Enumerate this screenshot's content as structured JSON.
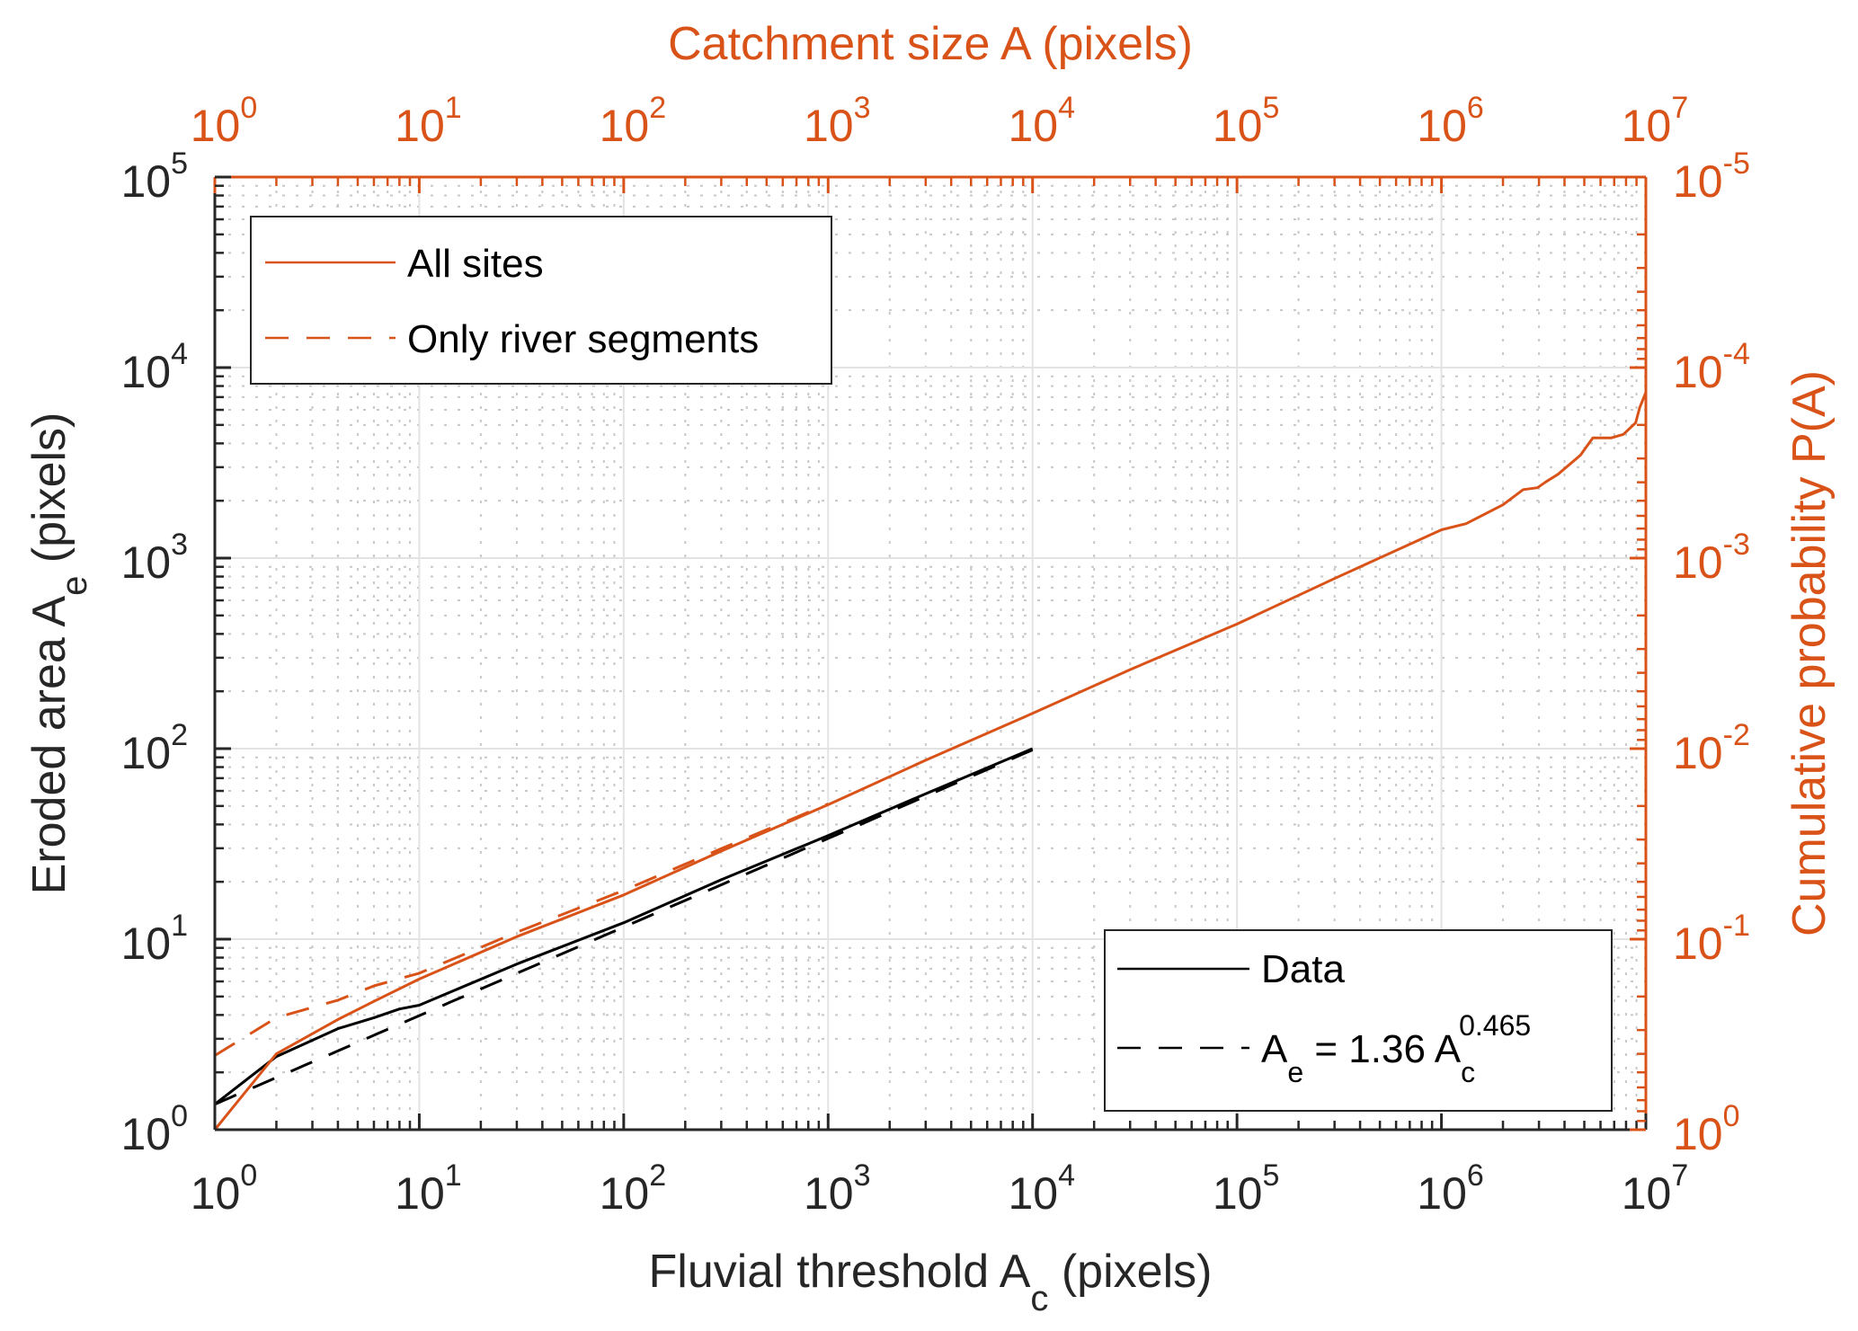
{
  "chart_data": {
    "type": "line",
    "title": "",
    "colors": {
      "primary_axis": "#262626",
      "secondary_axis": "#D95319",
      "grid": "#e3e3e3",
      "minor_grid": "#c8c8c8"
    },
    "x_axis_bottom": {
      "label": "Fluvial threshold A",
      "label_sub": "c",
      "label_suffix": " (pixels)",
      "scale": "log",
      "range": [
        1,
        10000000
      ],
      "ticks": [
        {
          "base": "10",
          "exp": "0"
        },
        {
          "base": "10",
          "exp": "1"
        },
        {
          "base": "10",
          "exp": "2"
        },
        {
          "base": "10",
          "exp": "3"
        },
        {
          "base": "10",
          "exp": "4"
        },
        {
          "base": "10",
          "exp": "5"
        },
        {
          "base": "10",
          "exp": "6"
        },
        {
          "base": "10",
          "exp": "7"
        }
      ]
    },
    "x_axis_top": {
      "label": "Catchment size A (pixels)",
      "scale": "log",
      "range": [
        1,
        10000000
      ],
      "ticks": [
        {
          "base": "10",
          "exp": "0"
        },
        {
          "base": "10",
          "exp": "1"
        },
        {
          "base": "10",
          "exp": "2"
        },
        {
          "base": "10",
          "exp": "3"
        },
        {
          "base": "10",
          "exp": "4"
        },
        {
          "base": "10",
          "exp": "5"
        },
        {
          "base": "10",
          "exp": "6"
        },
        {
          "base": "10",
          "exp": "7"
        }
      ]
    },
    "y_axis_left": {
      "label": "Eroded area A",
      "label_sub": "e",
      "label_suffix": " (pixels)",
      "scale": "log",
      "range": [
        1,
        100000
      ],
      "ticks": [
        {
          "base": "10",
          "exp": "0"
        },
        {
          "base": "10",
          "exp": "1"
        },
        {
          "base": "10",
          "exp": "2"
        },
        {
          "base": "10",
          "exp": "3"
        },
        {
          "base": "10",
          "exp": "4"
        },
        {
          "base": "10",
          "exp": "5"
        }
      ]
    },
    "y_axis_right": {
      "label": "Cumulative probability P(A)",
      "scale": "log",
      "reversed": true,
      "range": [
        1e-05,
        1
      ],
      "ticks": [
        {
          "base": "10",
          "exp": "0"
        },
        {
          "base": "10",
          "exp": "-1"
        },
        {
          "base": "10",
          "exp": "-2"
        },
        {
          "base": "10",
          "exp": "-3"
        },
        {
          "base": "10",
          "exp": "-4"
        },
        {
          "base": "10",
          "exp": "-5"
        }
      ]
    },
    "grid": true,
    "series": [
      {
        "name": "Data",
        "axis": "left",
        "color": "#000000",
        "style": "solid",
        "x": [
          1,
          2,
          4,
          6,
          8,
          10,
          30,
          100,
          300,
          1000,
          3000,
          10000
        ],
        "y": [
          1.36,
          2.42,
          3.39,
          3.87,
          4.3,
          4.5,
          7.4,
          12.2,
          20.5,
          35,
          58,
          100
        ]
      },
      {
        "name": "A_e = 1.36 A_c^0.465",
        "axis": "left",
        "color": "#000000",
        "style": "dashed",
        "fit": {
          "coefficient": 1.36,
          "exponent": 0.465
        },
        "x": [
          1,
          10,
          100,
          1000,
          10000
        ],
        "y": [
          1.36,
          3.97,
          11.6,
          33.9,
          98.5
        ]
      },
      {
        "name": "All sites",
        "axis": "right",
        "color": "#D95319",
        "style": "solid",
        "x": [
          1,
          2,
          4,
          6,
          10,
          30,
          100,
          300,
          1000,
          3000,
          10000,
          30000,
          100000,
          300000,
          1000000,
          1320000,
          2000000,
          2510000,
          2950000,
          3240000,
          3720000,
          4790000,
          5500000,
          6760000,
          7760000,
          8910000,
          9330000,
          10000000
        ],
        "y": [
          1.0,
          0.4,
          0.264,
          0.212,
          0.162,
          0.097,
          0.0586,
          0.0345,
          0.0197,
          0.0115,
          0.00653,
          0.00385,
          0.00222,
          0.00128,
          0.00071,
          0.00066,
          0.000525,
          0.000437,
          0.000427,
          0.000398,
          0.000363,
          0.000288,
          0.000234,
          0.000234,
          0.000224,
          0.000195,
          0.000162,
          0.000135
        ]
      },
      {
        "name": "Only river segments",
        "axis": "right",
        "color": "#D95319",
        "style": "dashed",
        "x": [
          1,
          2,
          4,
          6,
          10,
          30,
          100,
          300,
          1000
        ],
        "y": [
          0.408,
          0.258,
          0.209,
          0.176,
          0.151,
          0.092,
          0.0555,
          0.0335,
          0.0195
        ]
      }
    ],
    "legends": [
      {
        "placement": "top-left",
        "entries": [
          {
            "label": "All sites",
            "color": "#D95319",
            "style": "solid"
          },
          {
            "label": "Only river segments",
            "color": "#D95319",
            "style": "dashed"
          }
        ]
      },
      {
        "placement": "bottom-right",
        "entries": [
          {
            "label": "Data",
            "color": "#000000",
            "style": "solid"
          },
          {
            "label_parts": [
              "A",
              "e",
              " = 1.36 A",
              "c",
              "0.465"
            ],
            "color": "#000000",
            "style": "dashed"
          }
        ]
      }
    ]
  }
}
